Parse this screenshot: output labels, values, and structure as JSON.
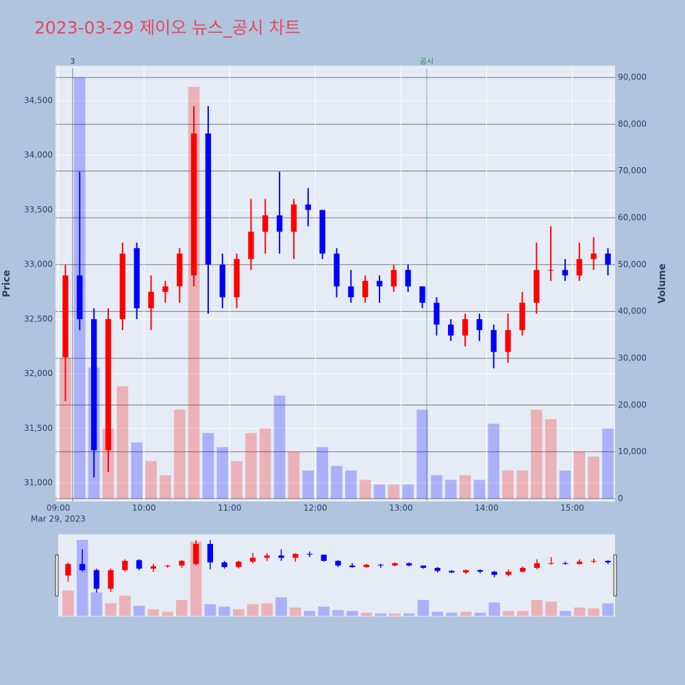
{
  "chart_data": {
    "type": "candlestick",
    "title": "2023-03-29 제이오 뉴스_공시 차트",
    "y_title": "Price",
    "y2_title": "Volume",
    "x_date": "Mar 29, 2023",
    "increasing_color": "#ff0000",
    "decreasing_color": "#0000ff",
    "x": [
      "09:00",
      "09:10",
      "09:20",
      "09:30",
      "09:40",
      "09:50",
      "10:00",
      "10:10",
      "10:20",
      "10:30",
      "10:40",
      "10:50",
      "11:00",
      "11:10",
      "11:20",
      "11:30",
      "11:40",
      "11:50",
      "12:00",
      "12:10",
      "12:20",
      "12:30",
      "12:40",
      "12:50",
      "13:00",
      "13:10",
      "13:20",
      "13:30",
      "13:40",
      "13:50",
      "14:00",
      "14:10",
      "14:20",
      "14:30",
      "14:40",
      "14:50",
      "15:00",
      "15:10",
      "15:20"
    ],
    "open": [
      32150,
      32900,
      32500,
      31300,
      32500,
      33150,
      32600,
      32750,
      32800,
      32900,
      34200,
      33000,
      32700,
      33050,
      33300,
      33450,
      33300,
      33550,
      33500,
      33100,
      32800,
      32700,
      32850,
      32800,
      32950,
      32800,
      32650,
      32450,
      32350,
      32500,
      32400,
      32200,
      32400,
      32650,
      32950,
      32950,
      32900,
      33050,
      33100
    ],
    "high": [
      33000,
      33850,
      32600,
      32600,
      33200,
      33200,
      32900,
      32850,
      33150,
      34450,
      34450,
      33100,
      33100,
      33600,
      33600,
      33850,
      33600,
      33700,
      33500,
      33150,
      32950,
      32900,
      32900,
      33000,
      33000,
      32800,
      32700,
      32500,
      32550,
      32550,
      32450,
      32550,
      32750,
      33200,
      33350,
      33050,
      33200,
      33250,
      33150
    ],
    "low": [
      31750,
      32400,
      31050,
      31100,
      32400,
      32500,
      32400,
      32650,
      32650,
      32800,
      32550,
      32600,
      32600,
      32950,
      33100,
      33100,
      33050,
      33350,
      33050,
      32700,
      32650,
      32650,
      32650,
      32750,
      32750,
      32600,
      32350,
      32300,
      32250,
      32300,
      32050,
      32100,
      32350,
      32550,
      32850,
      32850,
      32850,
      32950,
      32900
    ],
    "close": [
      32900,
      32500,
      31300,
      32500,
      33100,
      32600,
      32750,
      32800,
      33100,
      34200,
      33000,
      32700,
      33050,
      33300,
      33450,
      33300,
      33550,
      33500,
      33100,
      32800,
      32700,
      32850,
      32800,
      32950,
      32800,
      32650,
      32450,
      32350,
      32500,
      32400,
      32200,
      32400,
      32650,
      32950,
      32950,
      32900,
      33050,
      33100,
      33000
    ],
    "volume": [
      30000,
      90000,
      28000,
      15000,
      24000,
      12000,
      8000,
      5000,
      19000,
      88000,
      14000,
      11000,
      8000,
      14000,
      15000,
      22000,
      10000,
      6000,
      11000,
      7000,
      6000,
      4000,
      3000,
      3000,
      3000,
      19000,
      5000,
      4000,
      5000,
      4000,
      16000,
      6000,
      6000,
      19000,
      17000,
      6000,
      10000,
      9000,
      15000
    ],
    "xlim": [
      "08:58",
      "15:30"
    ],
    "xticks": [
      "09:00",
      "10:00",
      "11:00",
      "12:00",
      "13:00",
      "14:00",
      "15:00"
    ],
    "ylim": [
      30831,
      34820
    ],
    "yticks": [
      {
        "value": 31000,
        "label": "31,000"
      },
      {
        "value": 31500,
        "label": "31,500"
      },
      {
        "value": 32000,
        "label": "32,000"
      },
      {
        "value": 32500,
        "label": "32,500"
      },
      {
        "value": 33000,
        "label": "33,000"
      },
      {
        "value": 33500,
        "label": "33,500"
      },
      {
        "value": 34000,
        "label": "34,000"
      },
      {
        "value": 34500,
        "label": "34,500"
      }
    ],
    "y2lim": [
      -600,
      92500
    ],
    "y2ticks": [
      0,
      {
        "value": 10000,
        "label": "10,000"
      },
      {
        "value": 20000,
        "label": "20,000"
      },
      {
        "value": 30000,
        "label": "30,000"
      },
      {
        "value": 40000,
        "label": "40,000"
      },
      {
        "value": 50000,
        "label": "50,000"
      },
      {
        "value": 60000,
        "label": "60,000"
      },
      {
        "value": 70000,
        "label": "70,000"
      },
      {
        "value": 80000,
        "label": "80,000"
      },
      {
        "value": 90000,
        "label": "90,000"
      }
    ],
    "annotations": [
      {
        "x": "09:10",
        "text": "3",
        "color": "#333333"
      },
      {
        "x": "13:18",
        "text": "공시",
        "color": "#2e8b57"
      }
    ]
  }
}
